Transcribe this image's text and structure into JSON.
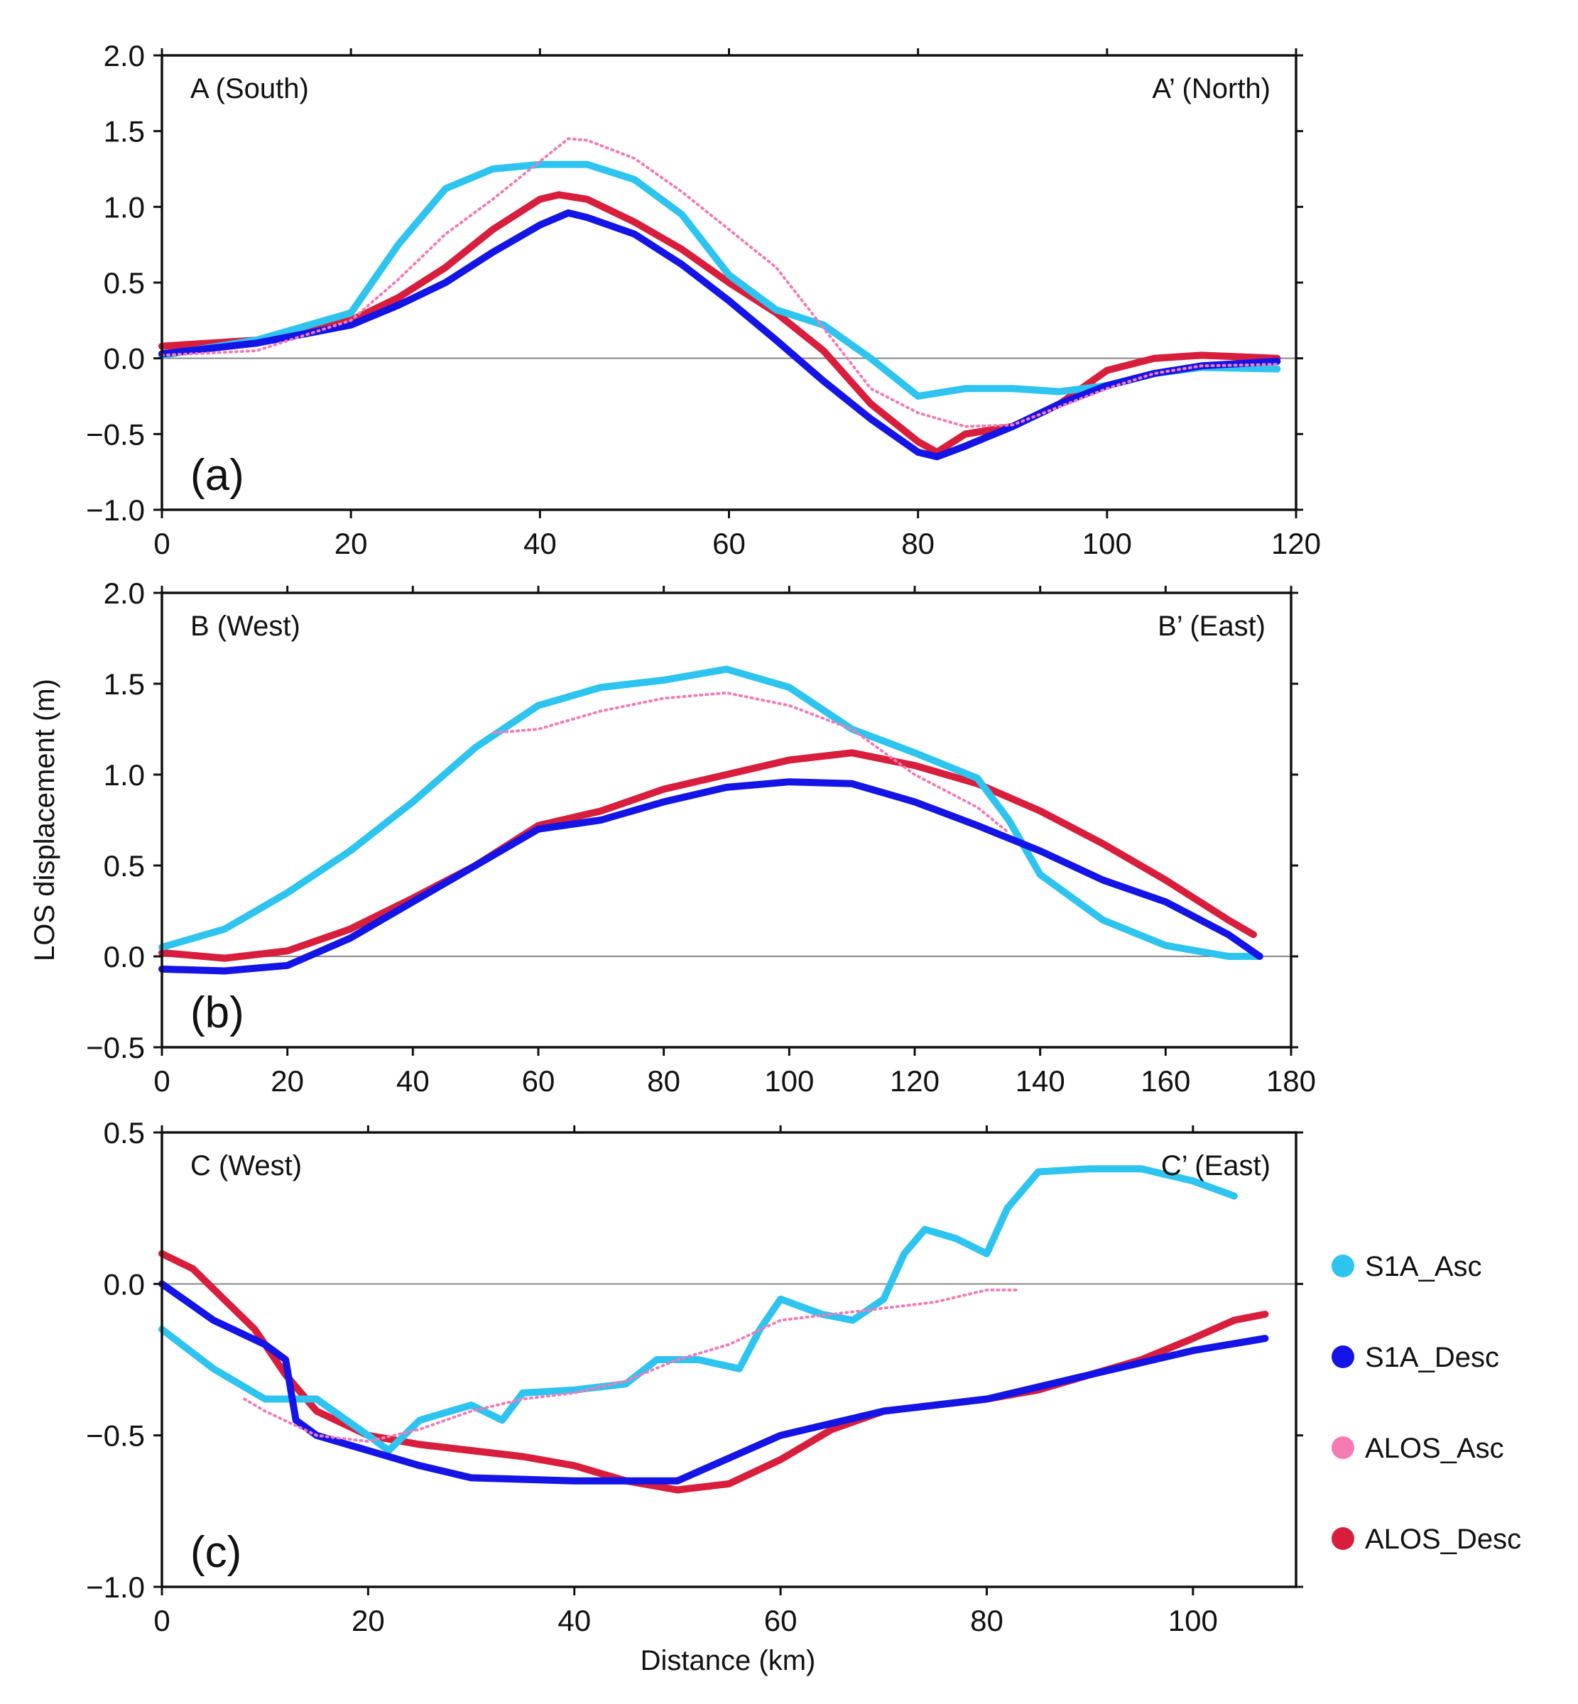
{
  "figure": {
    "ylabel": "LOS displacement (m)",
    "xlabel": "Distance (km)"
  },
  "legend": [
    {
      "name": "S1A_Asc",
      "color": "#2ec4f0"
    },
    {
      "name": "S1A_Desc",
      "color": "#1414e6"
    },
    {
      "name": "ALOS_Asc",
      "color": "#f57ab4"
    },
    {
      "name": "ALOS_Desc",
      "color": "#d81e3c"
    }
  ],
  "chart_data": [
    {
      "type": "line",
      "panel": "(a)",
      "left_label": "A (South)",
      "right_label": "A’ (North)",
      "xlim": [
        0,
        120
      ],
      "ylim": [
        -1.0,
        2.0
      ],
      "xticks": [
        "0",
        "20",
        "40",
        "60",
        "80",
        "100",
        "120"
      ],
      "yticks": [
        "2.0",
        "1.5",
        "1.0",
        "0.5",
        "0.0",
        "−0.5",
        "−1.0"
      ],
      "series": [
        {
          "name": "S1A_Asc",
          "x": [
            0,
            10,
            20,
            25,
            30,
            35,
            40,
            45,
            50,
            55,
            60,
            65,
            70,
            75,
            80,
            85,
            90,
            95,
            100,
            105,
            110,
            118
          ],
          "y": [
            0.02,
            0.12,
            0.3,
            0.75,
            1.12,
            1.25,
            1.28,
            1.28,
            1.18,
            0.95,
            0.55,
            0.32,
            0.22,
            0.0,
            -0.25,
            -0.2,
            -0.2,
            -0.22,
            -0.18,
            -0.1,
            -0.06,
            -0.07
          ]
        },
        {
          "name": "S1A_Desc",
          "x": [
            0,
            10,
            20,
            25,
            30,
            35,
            40,
            43,
            45,
            50,
            55,
            60,
            65,
            70,
            75,
            80,
            82,
            85,
            90,
            95,
            100,
            105,
            110,
            118
          ],
          "y": [
            0.03,
            0.1,
            0.22,
            0.35,
            0.5,
            0.7,
            0.88,
            0.96,
            0.93,
            0.82,
            0.62,
            0.38,
            0.12,
            -0.15,
            -0.4,
            -0.62,
            -0.65,
            -0.58,
            -0.45,
            -0.3,
            -0.18,
            -0.1,
            -0.05,
            -0.02
          ]
        },
        {
          "name": "ALOS_Asc",
          "x": [
            0,
            10,
            20,
            25,
            30,
            35,
            40,
            43,
            45,
            50,
            55,
            60,
            65,
            70,
            75,
            80,
            85,
            90,
            95,
            100,
            105,
            110,
            118
          ],
          "y": [
            0.02,
            0.05,
            0.25,
            0.52,
            0.82,
            1.05,
            1.3,
            1.45,
            1.44,
            1.32,
            1.1,
            0.85,
            0.6,
            0.2,
            -0.2,
            -0.36,
            -0.45,
            -0.44,
            -0.32,
            -0.2,
            -0.1,
            -0.05,
            -0.04
          ]
        },
        {
          "name": "ALOS_Desc",
          "x": [
            0,
            10,
            20,
            25,
            30,
            35,
            40,
            42,
            45,
            50,
            55,
            60,
            65,
            70,
            75,
            80,
            82,
            85,
            90,
            95,
            100,
            105,
            110,
            118
          ],
          "y": [
            0.08,
            0.12,
            0.25,
            0.4,
            0.6,
            0.85,
            1.05,
            1.08,
            1.05,
            0.9,
            0.72,
            0.5,
            0.3,
            0.05,
            -0.3,
            -0.55,
            -0.62,
            -0.5,
            -0.45,
            -0.3,
            -0.08,
            0.0,
            0.02,
            0.0
          ]
        }
      ]
    },
    {
      "type": "line",
      "panel": "(b)",
      "left_label": "B (West)",
      "right_label": "B’ (East)",
      "xlim": [
        0,
        180
      ],
      "ylim": [
        -0.5,
        2.0
      ],
      "xticks": [
        "0",
        "20",
        "40",
        "60",
        "80",
        "100",
        "120",
        "140",
        "160",
        "180"
      ],
      "yticks": [
        "2.0",
        "1.5",
        "1.0",
        "0.5",
        "0.0",
        "−0.5"
      ],
      "series": [
        {
          "name": "S1A_Asc",
          "x": [
            0,
            10,
            20,
            30,
            40,
            50,
            60,
            70,
            80,
            90,
            100,
            110,
            120,
            130,
            135,
            140,
            150,
            160,
            170,
            175
          ],
          "y": [
            0.05,
            0.15,
            0.35,
            0.58,
            0.85,
            1.15,
            1.38,
            1.48,
            1.52,
            1.58,
            1.48,
            1.25,
            1.12,
            0.98,
            0.75,
            0.45,
            0.2,
            0.06,
            0.0,
            0.0
          ]
        },
        {
          "name": "S1A_Desc",
          "x": [
            0,
            10,
            20,
            30,
            40,
            50,
            60,
            70,
            80,
            90,
            100,
            110,
            120,
            130,
            140,
            150,
            160,
            170,
            175
          ],
          "y": [
            -0.07,
            -0.08,
            -0.05,
            0.1,
            0.3,
            0.5,
            0.7,
            0.75,
            0.85,
            0.93,
            0.96,
            0.95,
            0.85,
            0.72,
            0.58,
            0.42,
            0.3,
            0.12,
            0.0
          ]
        },
        {
          "name": "ALOS_Asc",
          "x": [
            53,
            60,
            70,
            80,
            90,
            100,
            110,
            120,
            130,
            135
          ],
          "y": [
            1.23,
            1.25,
            1.35,
            1.42,
            1.45,
            1.38,
            1.25,
            1.0,
            0.82,
            0.68
          ]
        },
        {
          "name": "ALOS_Desc",
          "x": [
            0,
            10,
            20,
            30,
            40,
            50,
            60,
            70,
            80,
            90,
            100,
            110,
            120,
            130,
            140,
            150,
            160,
            170,
            174
          ],
          "y": [
            0.02,
            -0.01,
            0.03,
            0.15,
            0.32,
            0.5,
            0.72,
            0.8,
            0.92,
            1.0,
            1.08,
            1.12,
            1.05,
            0.95,
            0.8,
            0.62,
            0.42,
            0.2,
            0.12
          ]
        }
      ]
    },
    {
      "type": "line",
      "panel": "(c)",
      "left_label": "C (West)",
      "right_label": "C’ (East)",
      "xlim": [
        0,
        110
      ],
      "ylim": [
        -1.0,
        0.5
      ],
      "xticks": [
        "0",
        "20",
        "40",
        "60",
        "80",
        "100"
      ],
      "yticks": [
        "0.5",
        "0.0",
        "−0.5",
        "−1.0"
      ],
      "series": [
        {
          "name": "S1A_Asc",
          "x": [
            0,
            5,
            10,
            15,
            20,
            22,
            25,
            30,
            33,
            35,
            40,
            45,
            48,
            52,
            56,
            58,
            60,
            64,
            67,
            70,
            72,
            74,
            77,
            80,
            82,
            85,
            90,
            95,
            100,
            104
          ],
          "y": [
            -0.15,
            -0.28,
            -0.38,
            -0.38,
            -0.5,
            -0.55,
            -0.45,
            -0.4,
            -0.45,
            -0.36,
            -0.35,
            -0.33,
            -0.25,
            -0.25,
            -0.28,
            -0.15,
            -0.05,
            -0.1,
            -0.12,
            -0.05,
            0.1,
            0.18,
            0.15,
            0.1,
            0.25,
            0.37,
            0.38,
            0.38,
            0.34,
            0.29
          ]
        },
        {
          "name": "S1A_Desc",
          "x": [
            0,
            5,
            10,
            12,
            13,
            15,
            20,
            25,
            30,
            40,
            50,
            60,
            70,
            80,
            90,
            100,
            107
          ],
          "y": [
            0.0,
            -0.12,
            -0.2,
            -0.25,
            -0.45,
            -0.5,
            -0.55,
            -0.6,
            -0.64,
            -0.65,
            -0.65,
            -0.5,
            -0.42,
            -0.38,
            -0.3,
            -0.22,
            -0.18
          ]
        },
        {
          "name": "ALOS_Asc",
          "x": [
            8,
            10,
            15,
            20,
            25,
            30,
            35,
            40,
            45,
            50,
            55,
            60,
            65,
            70,
            75,
            80,
            83
          ],
          "y": [
            -0.38,
            -0.42,
            -0.5,
            -0.52,
            -0.48,
            -0.42,
            -0.38,
            -0.36,
            -0.32,
            -0.25,
            -0.2,
            -0.12,
            -0.1,
            -0.08,
            -0.06,
            -0.02,
            -0.02
          ]
        },
        {
          "name": "ALOS_Desc",
          "x": [
            0,
            3,
            6,
            9,
            12,
            15,
            20,
            25,
            30,
            35,
            40,
            45,
            50,
            55,
            60,
            65,
            70,
            75,
            80,
            85,
            90,
            95,
            100,
            104,
            107
          ],
          "y": [
            0.1,
            0.05,
            -0.05,
            -0.15,
            -0.3,
            -0.42,
            -0.5,
            -0.53,
            -0.55,
            -0.57,
            -0.6,
            -0.65,
            -0.68,
            -0.66,
            -0.58,
            -0.48,
            -0.42,
            -0.4,
            -0.38,
            -0.35,
            -0.3,
            -0.25,
            -0.18,
            -0.12,
            -0.1
          ]
        }
      ]
    }
  ]
}
